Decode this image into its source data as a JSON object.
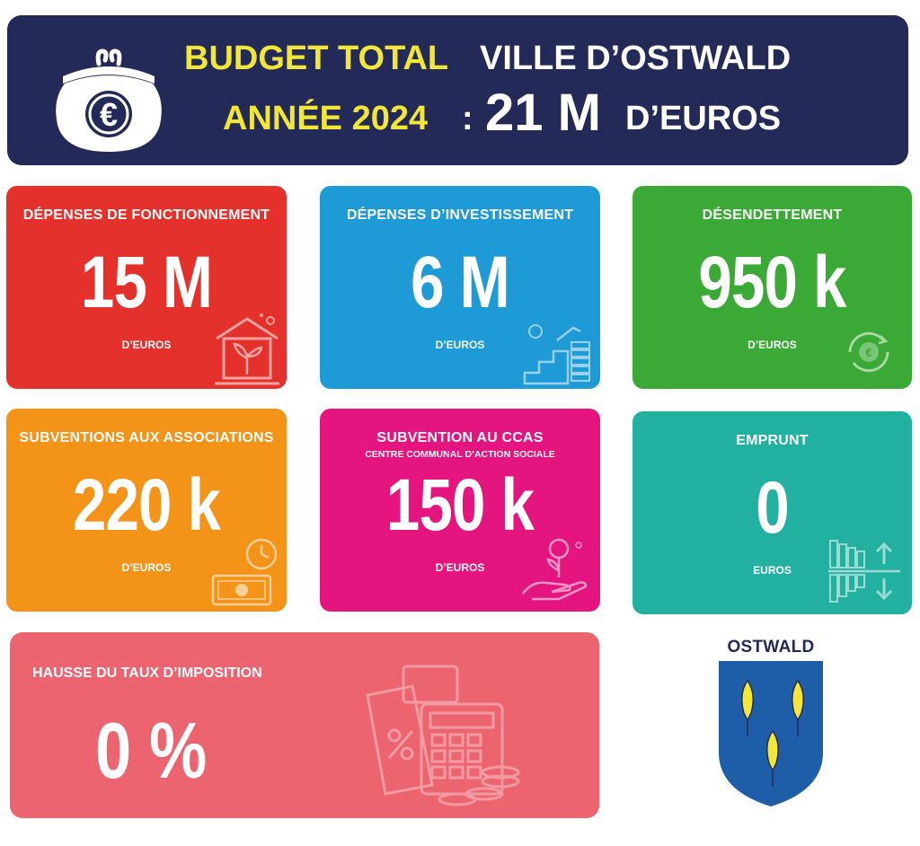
{
  "header": {
    "line1_yellow": "BUDGET TOTAL",
    "line1_white": "VILLE D’OSTWALD",
    "line2_yellow": "ANNÉE 2024",
    "line2_colon": ":",
    "line2_amount": "21 M",
    "line2_unit": "D’EUROS",
    "icon": "purse-euro-icon"
  },
  "cards": [
    {
      "title": "DÉPENSES DE FONCTIONNEMENT",
      "value": "15 M",
      "unit": "D’EUROS",
      "color": "#e5312b",
      "icon": "house-plant-icon"
    },
    {
      "title": "DÉPENSES D’INVESTISSEMENT",
      "value": "6 M",
      "unit": "D’EUROS",
      "color": "#1e9ad6",
      "icon": "coins-growth-icon"
    },
    {
      "title": "DÉSENDETTEMENT",
      "value": "950 k",
      "unit": "D’EUROS",
      "color": "#3aa935",
      "icon": "euro-cycle-icon"
    },
    {
      "title": "SUBVENTIONS AUX ASSOCIATIONS",
      "value": "220 k",
      "unit": "D’EUROS",
      "color": "#f39419",
      "icon": "banknote-clock-icon"
    },
    {
      "title": "SUBVENTION AU CCAS",
      "subtitle": "CENTRE COMMUNAL D’ACTION SOCIALE",
      "value": "150 k",
      "unit": "D’EUROS",
      "color": "#e5157f",
      "icon": "hand-coin-plant-icon"
    },
    {
      "title": "EMPRUNT",
      "value": "0",
      "unit": "EUROS",
      "color": "#22b0a0",
      "icon": "bars-up-down-icon"
    }
  ],
  "tax": {
    "title": "HAUSSE DU TAUX D’IMPOSITION",
    "value": "0 %",
    "color": "#ec6470",
    "icon": "tax-calculator-coins-icon"
  },
  "crest": {
    "name": "OSTWALD",
    "icon": "ostwald-coat-of-arms-icon",
    "colors": {
      "shield": "#1e5ea8",
      "charge": "#f2e637"
    }
  }
}
